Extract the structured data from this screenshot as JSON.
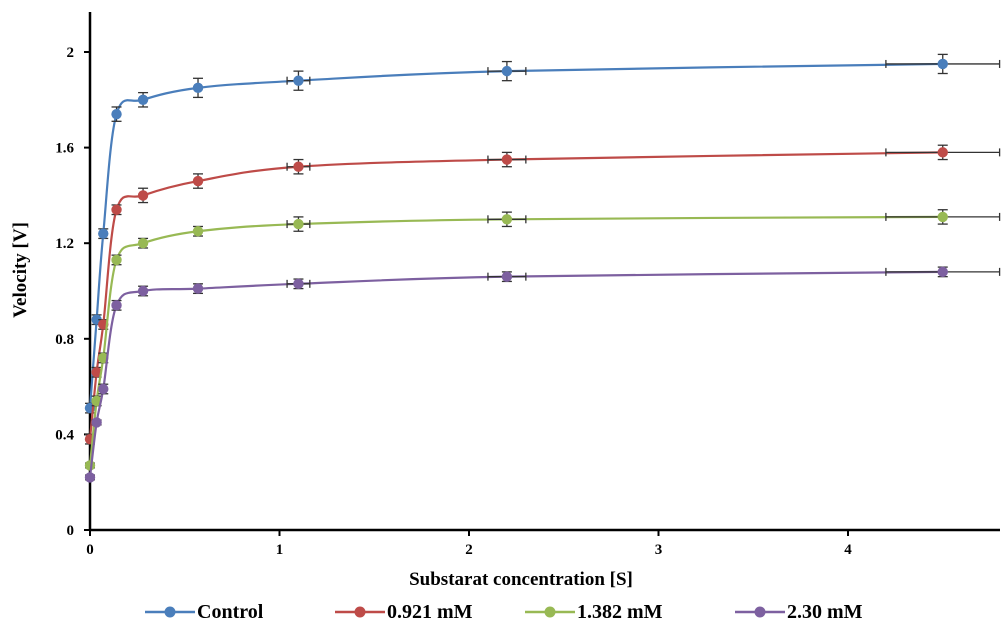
{
  "chart_data": {
    "type": "line",
    "xlabel": "Substarat concentration [S]",
    "ylabel": "Velocity [V]",
    "xlim": [
      0,
      4.8
    ],
    "ylim": [
      0,
      2.2
    ],
    "x_ticks": [
      0,
      1,
      2,
      3,
      4
    ],
    "x_tick_labels": [
      "0",
      "1",
      "2",
      "3",
      "4"
    ],
    "y_ticks": [
      0,
      0.4,
      0.8,
      1.2,
      1.6,
      2
    ],
    "y_tick_labels": [
      "0",
      "0.4",
      "0.8",
      "1.2",
      "1.6",
      "2"
    ],
    "grid": false,
    "legend_position": "bottom",
    "x": [
      0.0,
      0.035,
      0.07,
      0.14,
      0.28,
      0.57,
      1.1,
      2.2,
      4.5
    ],
    "series": [
      {
        "name": "Control",
        "color": "#4a7ebb",
        "values": [
          0.51,
          0.88,
          1.24,
          1.74,
          1.8,
          1.85,
          1.88,
          1.92,
          1.95
        ],
        "error": [
          0.02,
          0.02,
          0.02,
          0.03,
          0.03,
          0.04,
          0.04,
          0.04,
          0.04
        ]
      },
      {
        "name": "0.921 mM",
        "color": "#be4b48",
        "values": [
          0.38,
          0.66,
          0.86,
          1.34,
          1.4,
          1.46,
          1.52,
          1.55,
          1.58
        ],
        "error": [
          0.02,
          0.02,
          0.02,
          0.02,
          0.03,
          0.03,
          0.03,
          0.03,
          0.03
        ]
      },
      {
        "name": "1.382 mM",
        "color": "#98b954",
        "values": [
          0.27,
          0.54,
          0.72,
          1.13,
          1.2,
          1.25,
          1.28,
          1.3,
          1.31
        ],
        "error": [
          0.01,
          0.02,
          0.02,
          0.02,
          0.02,
          0.02,
          0.03,
          0.03,
          0.03
        ]
      },
      {
        "name": "2.30 mM",
        "color": "#7d60a0",
        "values": [
          0.22,
          0.45,
          0.59,
          0.94,
          1.0,
          1.01,
          1.03,
          1.06,
          1.08
        ],
        "error": [
          0.01,
          0.01,
          0.02,
          0.02,
          0.02,
          0.02,
          0.02,
          0.02,
          0.02
        ]
      }
    ],
    "x_error": [
      0,
      0,
      0,
      0,
      0,
      0,
      0.06,
      0.1,
      0.3
    ]
  }
}
